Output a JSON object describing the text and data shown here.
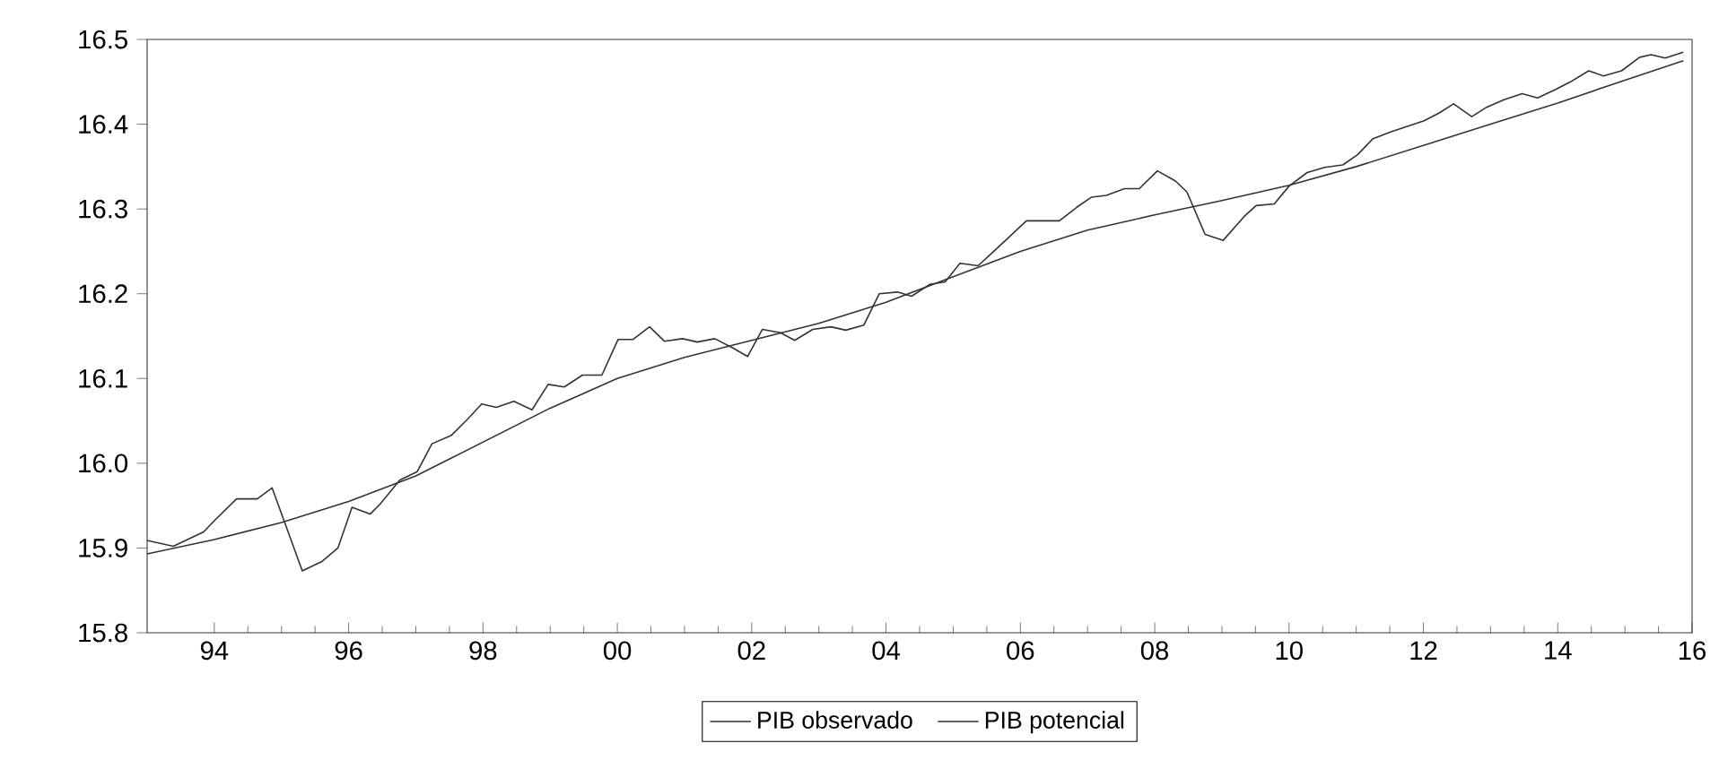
{
  "chart_data": {
    "type": "line",
    "x": [
      1993.0,
      1993.39,
      1993.84,
      1994.01,
      1994.33,
      1994.64,
      1994.86,
      1995.31,
      1995.6,
      1995.84,
      1996.05,
      1996.32,
      1996.47,
      1996.76,
      1997.02,
      1997.24,
      1997.53,
      1997.77,
      1997.98,
      1998.2,
      1998.46,
      1998.73,
      1998.97,
      1999.21,
      1999.48,
      1999.77,
      2000.01,
      2000.23,
      2000.48,
      2000.7,
      2000.97,
      2001.19,
      2001.45,
      2001.72,
      2001.94,
      2002.16,
      2002.43,
      2002.64,
      2002.91,
      2003.18,
      2003.4,
      2003.67,
      2003.9,
      2004.17,
      2004.38,
      2004.65,
      2004.88,
      2005.1,
      2005.37,
      2005.59,
      2005.82,
      2006.09,
      2006.36,
      2006.58,
      2006.84,
      2007.06,
      2007.28,
      2007.55,
      2007.77,
      2008.04,
      2008.31,
      2008.48,
      2008.75,
      2009.02,
      2009.33,
      2009.51,
      2009.78,
      2010.0,
      2010.27,
      2010.53,
      2010.8,
      2011.02,
      2011.25,
      2011.52,
      2011.74,
      2012.01,
      2012.23,
      2012.45,
      2012.72,
      2012.94,
      2013.2,
      2013.47,
      2013.7,
      2013.97,
      2014.19,
      2014.46,
      2014.68,
      2014.95,
      2015.22,
      2015.39,
      2015.6,
      2015.87
    ],
    "series": [
      {
        "name": "PIB observado",
        "color": "#333333",
        "values": [
          15.909,
          15.902,
          15.919,
          15.933,
          15.958,
          15.958,
          15.971,
          15.873,
          15.884,
          15.9,
          15.948,
          15.94,
          15.952,
          15.98,
          15.99,
          16.023,
          16.033,
          16.052,
          16.07,
          16.066,
          16.073,
          16.063,
          16.093,
          16.09,
          16.104,
          16.104,
          16.146,
          16.146,
          16.161,
          16.144,
          16.147,
          16.143,
          16.147,
          16.136,
          16.126,
          16.158,
          16.154,
          16.145,
          16.158,
          16.161,
          16.157,
          16.163,
          16.2,
          16.202,
          16.197,
          16.211,
          16.214,
          16.236,
          16.233,
          16.249,
          16.266,
          16.286,
          16.286,
          16.286,
          16.302,
          16.314,
          16.316,
          16.324,
          16.324,
          16.345,
          16.333,
          16.32,
          16.27,
          16.263,
          16.291,
          16.304,
          16.306,
          16.327,
          16.343,
          16.349,
          16.352,
          16.364,
          16.383,
          16.391,
          16.397,
          16.404,
          16.413,
          16.424,
          16.409,
          16.42,
          16.429,
          16.436,
          16.431,
          16.441,
          16.45,
          16.463,
          16.457,
          16.463,
          16.479,
          16.482,
          16.478,
          16.485
        ]
      },
      {
        "name": "PIB potencial",
        "color": "#333333",
        "x": [
          1993.0,
          1994.0,
          1995.0,
          1996.0,
          1997.0,
          1998.0,
          1999.0,
          2000.0,
          2001.0,
          2002.0,
          2003.0,
          2004.0,
          2005.0,
          2006.0,
          2007.0,
          2008.0,
          2009.0,
          2010.0,
          2011.0,
          2012.0,
          2013.0,
          2014.0,
          2015.0,
          2015.87
        ],
        "values": [
          15.893,
          15.91,
          15.93,
          15.955,
          15.985,
          16.025,
          16.065,
          16.1,
          16.125,
          16.145,
          16.165,
          16.19,
          16.22,
          16.25,
          16.275,
          16.293,
          16.31,
          16.328,
          16.35,
          16.375,
          16.4,
          16.425,
          16.452,
          16.475
        ]
      }
    ],
    "xlim": [
      1993,
      2016
    ],
    "xticks": [
      {
        "value": 1994,
        "label": "94"
      },
      {
        "value": 1996,
        "label": "96"
      },
      {
        "value": 1998,
        "label": "98"
      },
      {
        "value": 2000,
        "label": "00"
      },
      {
        "value": 2002,
        "label": "02"
      },
      {
        "value": 2004,
        "label": "04"
      },
      {
        "value": 2006,
        "label": "06"
      },
      {
        "value": 2008,
        "label": "08"
      },
      {
        "value": 2010,
        "label": "10"
      },
      {
        "value": 2012,
        "label": "12"
      },
      {
        "value": 2014,
        "label": "14"
      },
      {
        "value": 2016,
        "label": "16"
      }
    ],
    "ylim": [
      15.8,
      16.5
    ],
    "yticks": [
      {
        "value": 15.8,
        "label": "15.8"
      },
      {
        "value": 15.9,
        "label": "15.9"
      },
      {
        "value": 16.0,
        "label": "16.0"
      },
      {
        "value": 16.1,
        "label": "16.1"
      },
      {
        "value": 16.2,
        "label": "16.2"
      },
      {
        "value": 16.3,
        "label": "16.3"
      },
      {
        "value": 16.4,
        "label": "16.4"
      },
      {
        "value": 16.5,
        "label": "16.5"
      }
    ],
    "grid": false,
    "legend": "bottom",
    "line_style": "solid",
    "marker": "none"
  }
}
